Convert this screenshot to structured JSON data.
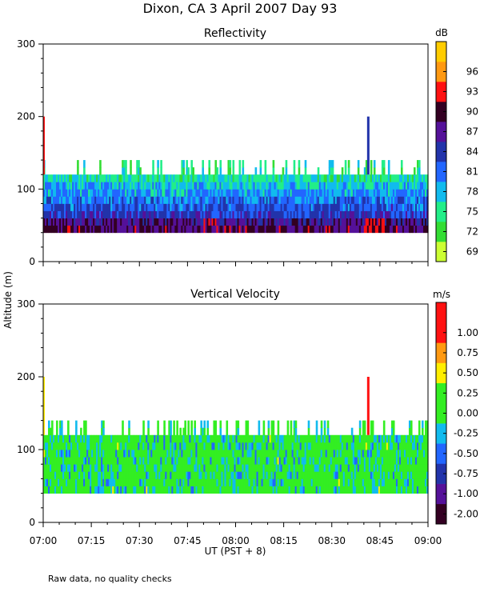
{
  "chart_data": [
    {
      "type": "heatmap",
      "title": "Dixon, CA   3 April 2007   Day   93",
      "panel_title": "Reflectivity",
      "xlabel": "UT   (PST + 8)",
      "ylabel": "Altitude  (m)",
      "x_ticks": [
        "07:00",
        "07:15",
        "07:30",
        "07:45",
        "08:00",
        "08:15",
        "08:30",
        "08:45",
        "09:00"
      ],
      "x_range_minutes": [
        0,
        120
      ],
      "y_ticks": [
        "0",
        "100",
        "200",
        "300"
      ],
      "ylim": [
        0,
        300
      ],
      "colorbar": {
        "unit": "dB",
        "range": [
          67.5,
          97.5
        ],
        "tick_labels": [
          "69",
          "72",
          "75",
          "78",
          "81",
          "84",
          "87",
          "90",
          "93",
          "96"
        ],
        "colors": [
          "#ccff33",
          "#33dd33",
          "#22ee88",
          "#11bbee",
          "#2266ff",
          "#2233aa",
          "#551199",
          "#330022",
          "#ff1111",
          "#ff9911",
          "#ffcc00"
        ]
      },
      "data_extent_m": {
        "base": 40,
        "typical_top": 120,
        "max_top": 140
      },
      "notable_echo": {
        "time": "08:41",
        "top_m": 200
      }
    },
    {
      "type": "heatmap",
      "panel_title": "Vertical Velocity",
      "xlabel": "UT   (PST + 8)",
      "ylabel": "Altitude  (m)",
      "x_ticks": [
        "07:00",
        "07:15",
        "07:30",
        "07:45",
        "08:00",
        "08:15",
        "08:30",
        "08:45",
        "09:00"
      ],
      "x_range_minutes": [
        0,
        120
      ],
      "y_ticks": [
        "0",
        "100",
        "200",
        "300"
      ],
      "ylim": [
        0,
        300
      ],
      "colorbar": {
        "unit": "m/s",
        "range": [
          -2.0,
          1.25
        ],
        "tick_labels": [
          "-2.00",
          "-1.00",
          "-0.75",
          "-0.50",
          "-0.25",
          "0.00",
          "0.25",
          "0.50",
          "0.75",
          "1.00"
        ],
        "colors": [
          "#330022",
          "#551199",
          "#2233aa",
          "#2266ff",
          "#11bbee",
          "#33ee22",
          "#33ee22",
          "#ffee00",
          "#ff9911",
          "#ff1111",
          "#ff1111"
        ]
      },
      "data_extent_m": {
        "base": 40,
        "typical_top": 120,
        "max_top": 140
      },
      "notable_echo": {
        "time": "08:41",
        "top_m": 200
      }
    }
  ],
  "footnote": "Raw data, no quality checks"
}
